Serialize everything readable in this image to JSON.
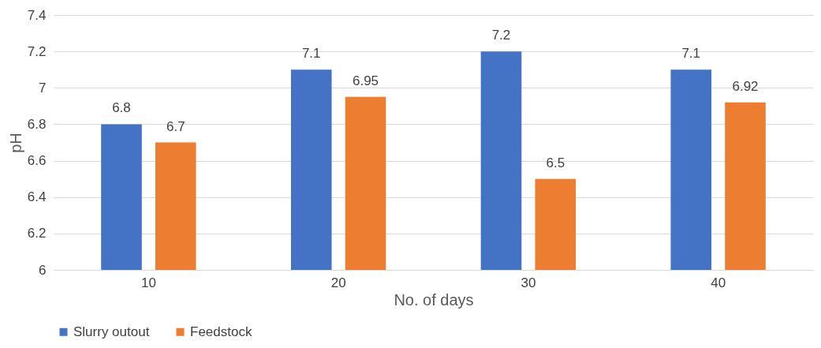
{
  "chart_data": {
    "type": "bar",
    "xlabel": "No. of days",
    "ylabel": "pH",
    "categories": [
      "10",
      "20",
      "30",
      "40"
    ],
    "series": [
      {
        "name": "Slurry outout",
        "color": "#4472c4",
        "values": [
          6.8,
          7.1,
          7.2,
          7.1
        ]
      },
      {
        "name": "Feedstock",
        "color": "#ed7d31",
        "values": [
          6.7,
          6.95,
          6.5,
          6.92
        ]
      }
    ],
    "ylim": [
      6,
      7.4
    ],
    "yticks": [
      6,
      6.2,
      6.4,
      6.6,
      6.8,
      7,
      7.2,
      7.4
    ],
    "grid": "y",
    "legend": "bottom",
    "data_labels": true
  }
}
